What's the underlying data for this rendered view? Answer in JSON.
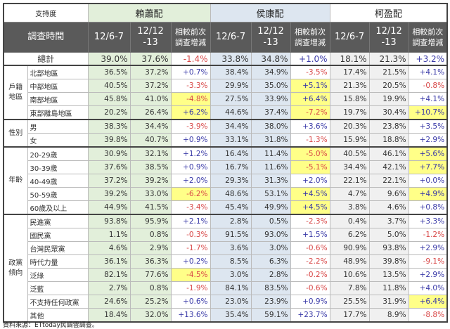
{
  "header": {
    "corner": "支持度",
    "time_label": "調查時間",
    "candidates": [
      "賴蕭配",
      "侯康配",
      "柯盈配"
    ],
    "subcolumns": [
      "12/6-7",
      "12/12\n-13",
      "相較前次\n調查增減"
    ]
  },
  "total": {
    "label": "總計",
    "values": [
      "39.0%",
      "37.6%",
      "-1.4%",
      "33.8%",
      "34.8%",
      "+1.0%",
      "18.1%",
      "21.3%",
      "+3.2%"
    ],
    "highlight": []
  },
  "groups": [
    {
      "label": "戶籍\n地區",
      "rows": [
        {
          "label": "北部地區",
          "values": [
            "36.5%",
            "37.2%",
            "+0.7%",
            "38.4%",
            "34.9%",
            "-3.5%",
            "17.4%",
            "21.5%",
            "+4.1%"
          ],
          "highlight": []
        },
        {
          "label": "中部地區",
          "values": [
            "40.5%",
            "37.2%",
            "-3.3%",
            "29.9%",
            "35.0%",
            "+5.1%",
            "21.3%",
            "20.5%",
            "-0.8%"
          ],
          "highlight": [
            5
          ]
        },
        {
          "label": "南部地區",
          "values": [
            "45.8%",
            "41.0%",
            "-4.8%",
            "27.5%",
            "33.9%",
            "+6.4%",
            "15.8%",
            "19.9%",
            "+4.1%"
          ],
          "highlight": [
            2,
            5
          ]
        },
        {
          "label": "東部離島地區",
          "values": [
            "20.2%",
            "26.4%",
            "+6.2%",
            "44.6%",
            "37.4%",
            "-7.2%",
            "19.7%",
            "30.4%",
            "+10.7%"
          ],
          "highlight": [
            2,
            5,
            8
          ]
        }
      ]
    },
    {
      "label": "性別",
      "rows": [
        {
          "label": "男",
          "values": [
            "38.3%",
            "34.4%",
            "-3.9%",
            "34.4%",
            "38.0%",
            "+3.6%",
            "20.3%",
            "23.8%",
            "+3.5%"
          ],
          "highlight": []
        },
        {
          "label": "女",
          "values": [
            "39.8%",
            "40.7%",
            "+0.9%",
            "33.1%",
            "31.8%",
            "-1.3%",
            "15.9%",
            "18.8%",
            "+2.9%"
          ],
          "highlight": []
        }
      ]
    },
    {
      "label": "年齡",
      "rows": [
        {
          "label": "20-29歲",
          "values": [
            "30.9%",
            "32.1%",
            "+1.2%",
            "16.4%",
            "11.4%",
            "-5.0%",
            "40.5%",
            "46.1%",
            "+5.6%"
          ],
          "highlight": [
            5,
            8
          ]
        },
        {
          "label": "30-39歲",
          "values": [
            "37.6%",
            "38.5%",
            "+0.9%",
            "16.7%",
            "11.6%",
            "-5.1%",
            "34.4%",
            "42.1%",
            "+7.7%"
          ],
          "highlight": [
            5,
            8
          ]
        },
        {
          "label": "40-49歲",
          "values": [
            "37.2%",
            "39.2%",
            "+2.0%",
            "29.3%",
            "31.3%",
            "+2.0%",
            "22.1%",
            "22.1%",
            "+0.0%"
          ],
          "highlight": []
        },
        {
          "label": "50-59歲",
          "values": [
            "39.2%",
            "33.0%",
            "-6.2%",
            "48.6%",
            "53.1%",
            "+4.5%",
            "4.7%",
            "9.6%",
            "+4.9%"
          ],
          "highlight": [
            2,
            5,
            8
          ]
        },
        {
          "label": "60歲及以上",
          "values": [
            "44.9%",
            "41.5%",
            "-3.4%",
            "45.4%",
            "49.9%",
            "+4.5%",
            "3.8%",
            "4.6%",
            "+0.8%"
          ],
          "highlight": [
            5
          ]
        }
      ]
    },
    {
      "label": "政黨\n傾向",
      "rows": [
        {
          "label": "民進黨",
          "values": [
            "93.8%",
            "95.9%",
            "+2.1%",
            "2.8%",
            "0.5%",
            "-2.3%",
            "0.4%",
            "3.7%",
            "+3.3%"
          ],
          "highlight": []
        },
        {
          "label": "國民黨",
          "values": [
            "1.1%",
            "0.8%",
            "-0.3%",
            "91.5%",
            "93.0%",
            "+1.5%",
            "6.2%",
            "5.0%",
            "-1.2%"
          ],
          "highlight": []
        },
        {
          "label": "台灣民眾黨",
          "values": [
            "4.6%",
            "2.9%",
            "-1.7%",
            "3.6%",
            "3.0%",
            "-0.6%",
            "90.9%",
            "93.8%",
            "+2.9%"
          ],
          "highlight": []
        },
        {
          "label": "時代力量",
          "values": [
            "36.1%",
            "36.3%",
            "+0.2%",
            "8.5%",
            "6.3%",
            "-2.2%",
            "48.9%",
            "39.8%",
            "-9.1%"
          ],
          "highlight": []
        },
        {
          "label": "泛綠",
          "values": [
            "82.1%",
            "77.6%",
            "-4.5%",
            "3.0%",
            "2.8%",
            "-0.2%",
            "10.6%",
            "13.5%",
            "+2.9%"
          ],
          "highlight": [
            2
          ]
        },
        {
          "label": "泛藍",
          "values": [
            "2.7%",
            "0.8%",
            "-1.9%",
            "84.1%",
            "83.5%",
            "-0.6%",
            "7.8%",
            "11.8%",
            "+4.0%"
          ],
          "highlight": []
        },
        {
          "label": "不支持任何政黨",
          "values": [
            "24.6%",
            "25.2%",
            "+0.6%",
            "23.0%",
            "23.9%",
            "+0.9%",
            "25.5%",
            "31.9%",
            "+6.4%"
          ],
          "highlight": [
            8
          ]
        },
        {
          "label": "其他",
          "values": [
            "18.4%",
            "32.0%",
            "+13.6%",
            "35.4%",
            "59.1%",
            "+23.7%",
            "17.7%",
            "8.9%",
            "-8.8%"
          ],
          "highlight": []
        }
      ]
    }
  ],
  "source": "資料來源：ETtoday民調雲調查。",
  "colors": {
    "lai": "#e2efda",
    "hou": "#dde6f0",
    "ko": "#f0f0f0",
    "highlight": "#ffff88",
    "positive": "#3a3aa8",
    "negative": "#d84848",
    "header": "#5a5a5a"
  }
}
